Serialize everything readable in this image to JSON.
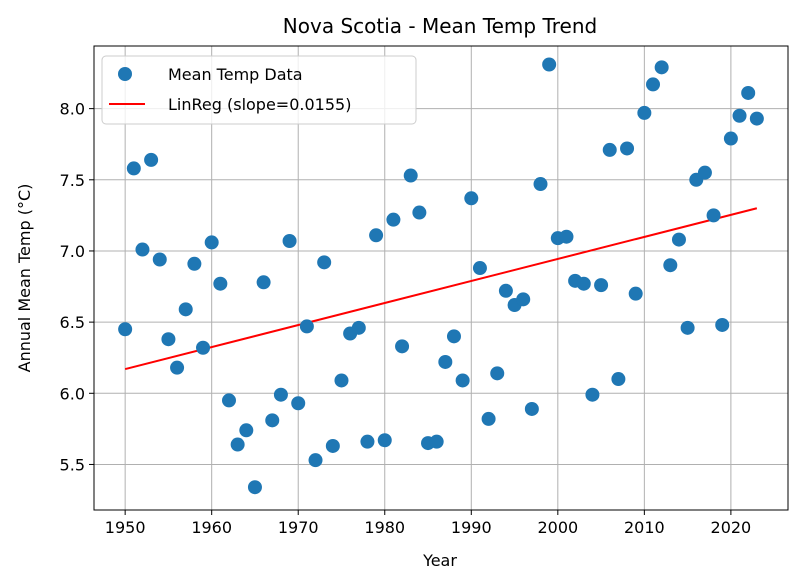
{
  "chart_data": {
    "type": "scatter",
    "title": "Nova Scotia - Mean Temp Trend",
    "xlabel": "Year",
    "ylabel": "Annual Mean Temp (°C)",
    "xlim": [
      1946.4,
      2026.6
    ],
    "ylim": [
      5.18,
      8.44
    ],
    "xticks": [
      1950,
      1960,
      1970,
      1980,
      1990,
      2000,
      2010,
      2020
    ],
    "yticks": [
      5.5,
      6.0,
      6.5,
      7.0,
      7.5,
      8.0
    ],
    "ytick_labels": [
      "5.5",
      "6.0",
      "6.5",
      "7.0",
      "7.5",
      "8.0"
    ],
    "grid": true,
    "legend_position": "top-left",
    "colors": {
      "points": "#1f77b4",
      "line": "#ff0000"
    },
    "series": [
      {
        "name": "Mean Temp Data",
        "kind": "scatter",
        "x": [
          1950,
          1951,
          1952,
          1953,
          1954,
          1955,
          1956,
          1957,
          1958,
          1959,
          1960,
          1961,
          1962,
          1963,
          1964,
          1965,
          1966,
          1967,
          1968,
          1969,
          1970,
          1971,
          1972,
          1973,
          1974,
          1975,
          1976,
          1977,
          1978,
          1979,
          1980,
          1981,
          1982,
          1983,
          1984,
          1985,
          1986,
          1987,
          1988,
          1989,
          1990,
          1991,
          1992,
          1993,
          1994,
          1995,
          1996,
          1997,
          1998,
          1999,
          2000,
          2001,
          2002,
          2003,
          2004,
          2005,
          2006,
          2007,
          2008,
          2009,
          2010,
          2011,
          2012,
          2013,
          2014,
          2015,
          2016,
          2017,
          2018,
          2019,
          2020,
          2021,
          2022,
          2023
        ],
        "y": [
          6.45,
          7.58,
          7.01,
          7.64,
          6.94,
          6.38,
          6.18,
          6.59,
          6.91,
          6.32,
          7.06,
          6.77,
          5.95,
          5.64,
          5.74,
          5.34,
          6.78,
          5.81,
          5.99,
          7.07,
          5.93,
          6.47,
          5.53,
          6.92,
          5.63,
          6.09,
          6.42,
          6.46,
          5.66,
          7.11,
          5.67,
          7.22,
          6.33,
          7.53,
          7.27,
          5.65,
          5.66,
          6.22,
          6.4,
          6.09,
          7.37,
          6.88,
          5.82,
          6.14,
          6.72,
          6.62,
          6.66,
          5.89,
          7.47,
          8.31,
          7.09,
          7.1,
          6.79,
          6.77,
          5.99,
          6.76,
          7.71,
          6.1,
          7.72,
          6.7,
          7.97,
          8.17,
          8.29,
          6.9,
          7.08,
          6.46,
          7.5,
          7.55,
          7.25,
          6.48,
          7.79,
          7.95,
          8.11,
          7.93
        ]
      },
      {
        "name": "LinReg (slope=0.0155)",
        "kind": "line",
        "x": [
          1950,
          2023
        ],
        "y": [
          6.17,
          7.3
        ]
      }
    ]
  }
}
